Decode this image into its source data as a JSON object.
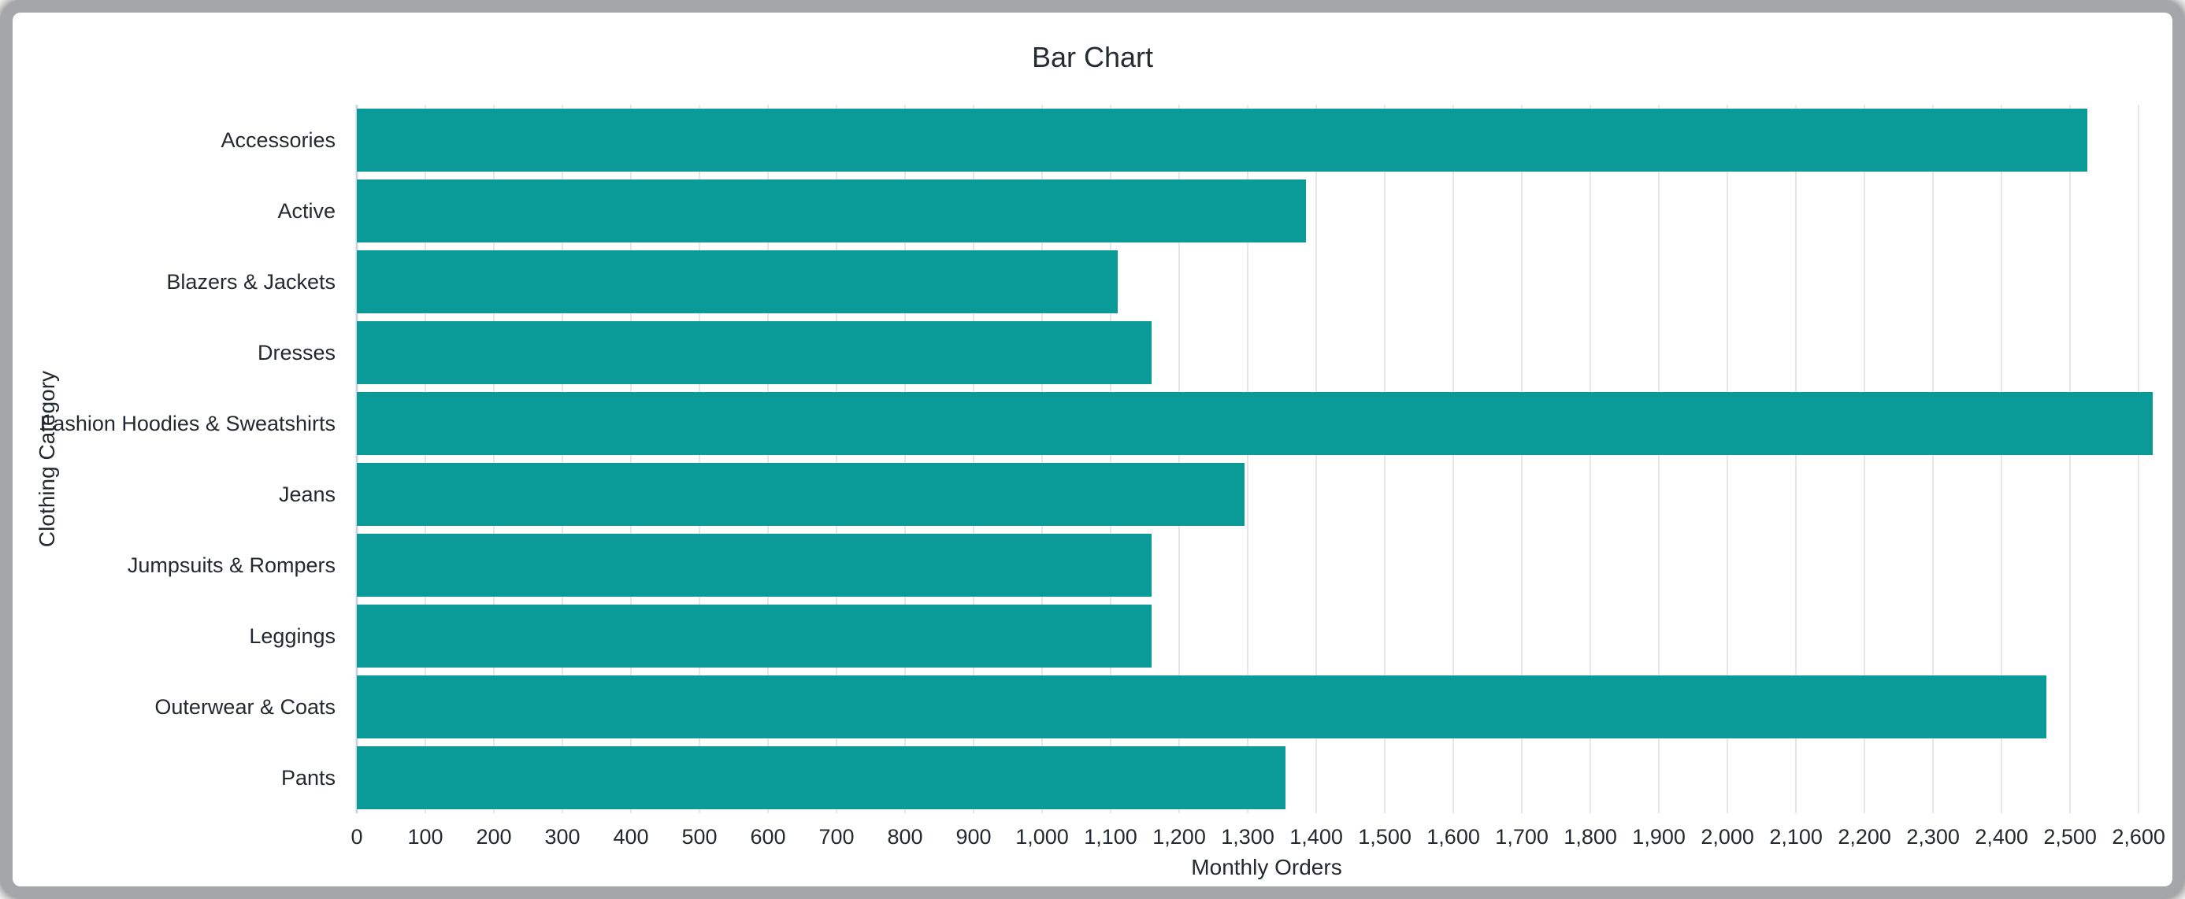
{
  "card": {
    "frame_color": "#a5a6aa",
    "background_color": "#ffffff"
  },
  "chart_data": {
    "type": "bar",
    "orientation": "horizontal",
    "title": "Bar Chart",
    "xlabel": "Monthly Orders",
    "ylabel": "Clothing Category",
    "categories": [
      "Accessories",
      "Active",
      "Blazers & Jackets",
      "Dresses",
      "Fashion Hoodies & Sweatshirts",
      "Jeans",
      "Jumpsuits & Rompers",
      "Leggings",
      "Outerwear & Coats",
      "Pants"
    ],
    "values": [
      2525,
      1385,
      1110,
      1160,
      2620,
      1295,
      1160,
      1160,
      2465,
      1355
    ],
    "xlim": [
      0,
      2655
    ],
    "x_tick_step": 100,
    "x_ticks": [
      0,
      100,
      200,
      300,
      400,
      500,
      600,
      700,
      800,
      900,
      1000,
      1100,
      1200,
      1300,
      1400,
      1500,
      1600,
      1700,
      1800,
      1900,
      2000,
      2100,
      2200,
      2300,
      2400,
      2500,
      2600
    ],
    "x_tick_labels": [
      "0",
      "100",
      "200",
      "300",
      "400",
      "500",
      "600",
      "700",
      "800",
      "900",
      "1,000",
      "1,100",
      "1,200",
      "1,300",
      "1,400",
      "1,500",
      "1,600",
      "1,700",
      "1,800",
      "1,900",
      "2,000",
      "2,100",
      "2,200",
      "2,300",
      "2,400",
      "2,500",
      "2,600"
    ],
    "grid": "vertical",
    "legend": false,
    "colors": {
      "bar": "#0a9a97",
      "gridline": "#e7e7e8",
      "zero_line": "#ccd5e8",
      "text": "#24292f",
      "title": "#262b31"
    }
  }
}
